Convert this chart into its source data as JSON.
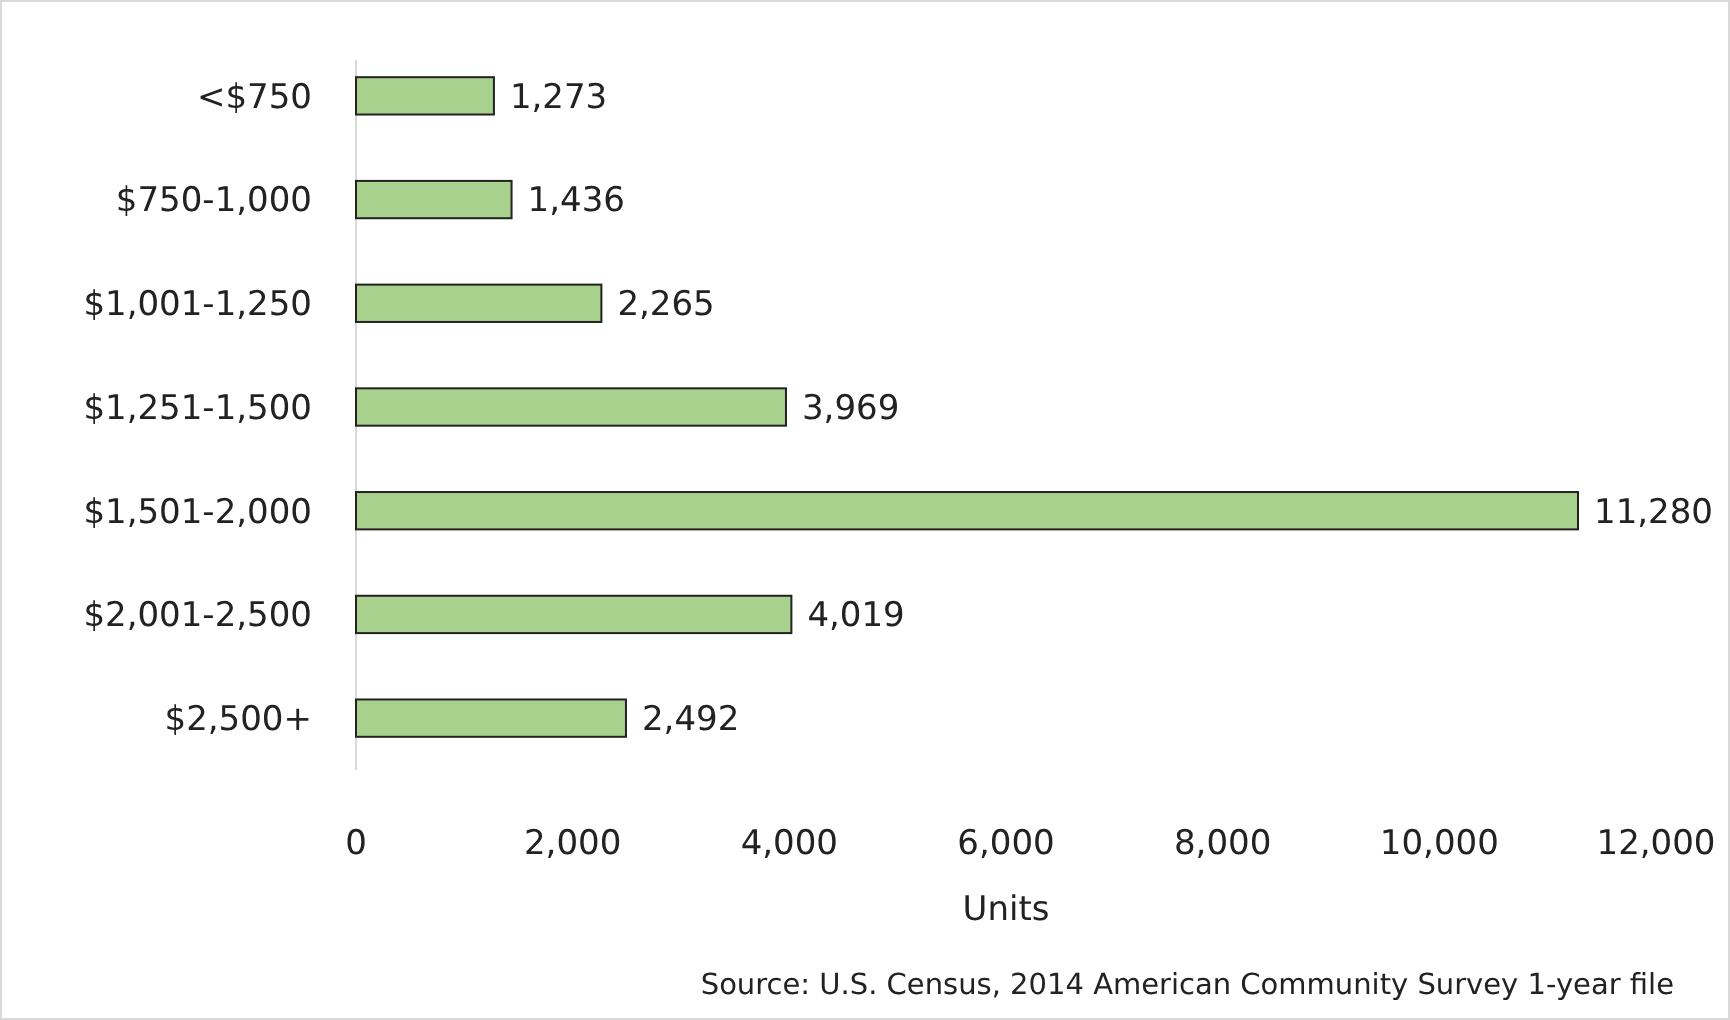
{
  "chart_data": {
    "type": "bar",
    "orientation": "horizontal",
    "xlabel": "Units",
    "categories": [
      "<$750",
      "$750-1,000",
      "$1,001-1,250",
      "$1,251-1,500",
      "$1,501-2,000",
      "$2,001-2,500",
      "$2,500+"
    ],
    "values": [
      1273,
      1436,
      2265,
      3969,
      11280,
      4019,
      2492
    ],
    "color": "#a9d18e",
    "xlim": [
      0,
      12000
    ],
    "xticks": [
      {
        "value": 0,
        "label": "0"
      },
      {
        "value": 2000,
        "label": "2,000"
      },
      {
        "value": 4000,
        "label": "4,000"
      },
      {
        "value": 6000,
        "label": "6,000"
      },
      {
        "value": 8000,
        "label": "8,000"
      },
      {
        "value": 10000,
        "label": "10,000"
      },
      {
        "value": 12000,
        "label": "12,000"
      }
    ],
    "value_labels": [
      "1,273",
      "1,436",
      "2,265",
      "3,969",
      "11,280",
      "4,019",
      "2,492"
    ],
    "annotations": [
      "Source: U.S. Census, 2014 American Community Survey 1-year file"
    ]
  }
}
